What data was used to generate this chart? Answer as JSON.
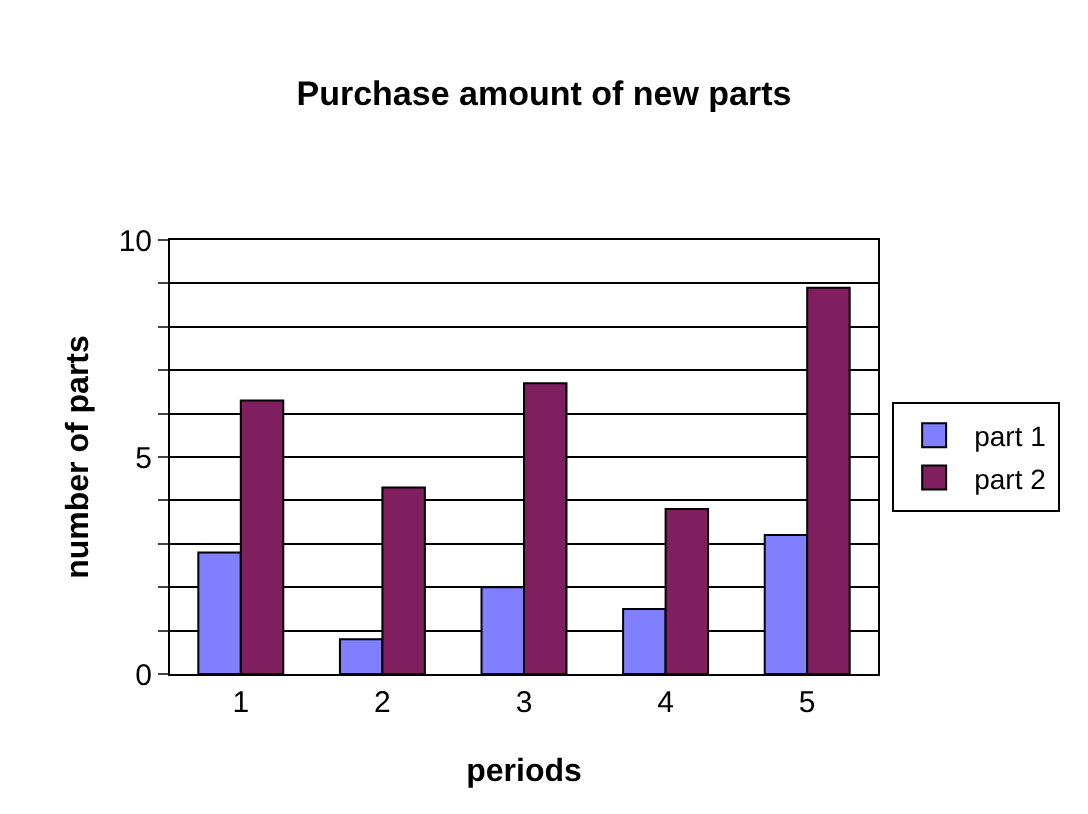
{
  "chart_data": {
    "type": "bar",
    "title": "Purchase amount of new parts",
    "xlabel": "periods",
    "ylabel": "number of parts",
    "categories": [
      "1",
      "2",
      "3",
      "4",
      "5"
    ],
    "series": [
      {
        "name": "part 1",
        "color": "#8080ff",
        "values": [
          2.8,
          0.8,
          2.0,
          1.5,
          3.2
        ]
      },
      {
        "name": "part 2",
        "color": "#7f1f5f",
        "values": [
          6.3,
          4.3,
          6.7,
          3.8,
          8.9
        ]
      }
    ],
    "ylim": [
      0,
      10
    ],
    "yticks": [
      0,
      {
        "value": 1,
        "label": null
      },
      {
        "value": 2,
        "label": null
      },
      {
        "value": 3,
        "label": null
      },
      {
        "value": 4,
        "label": null
      },
      5,
      {
        "value": 6,
        "label": null
      },
      {
        "value": 7,
        "label": null
      },
      {
        "value": 8,
        "label": null
      },
      {
        "value": 9,
        "label": null
      },
      10
    ],
    "grid": "y",
    "legend": "right"
  }
}
